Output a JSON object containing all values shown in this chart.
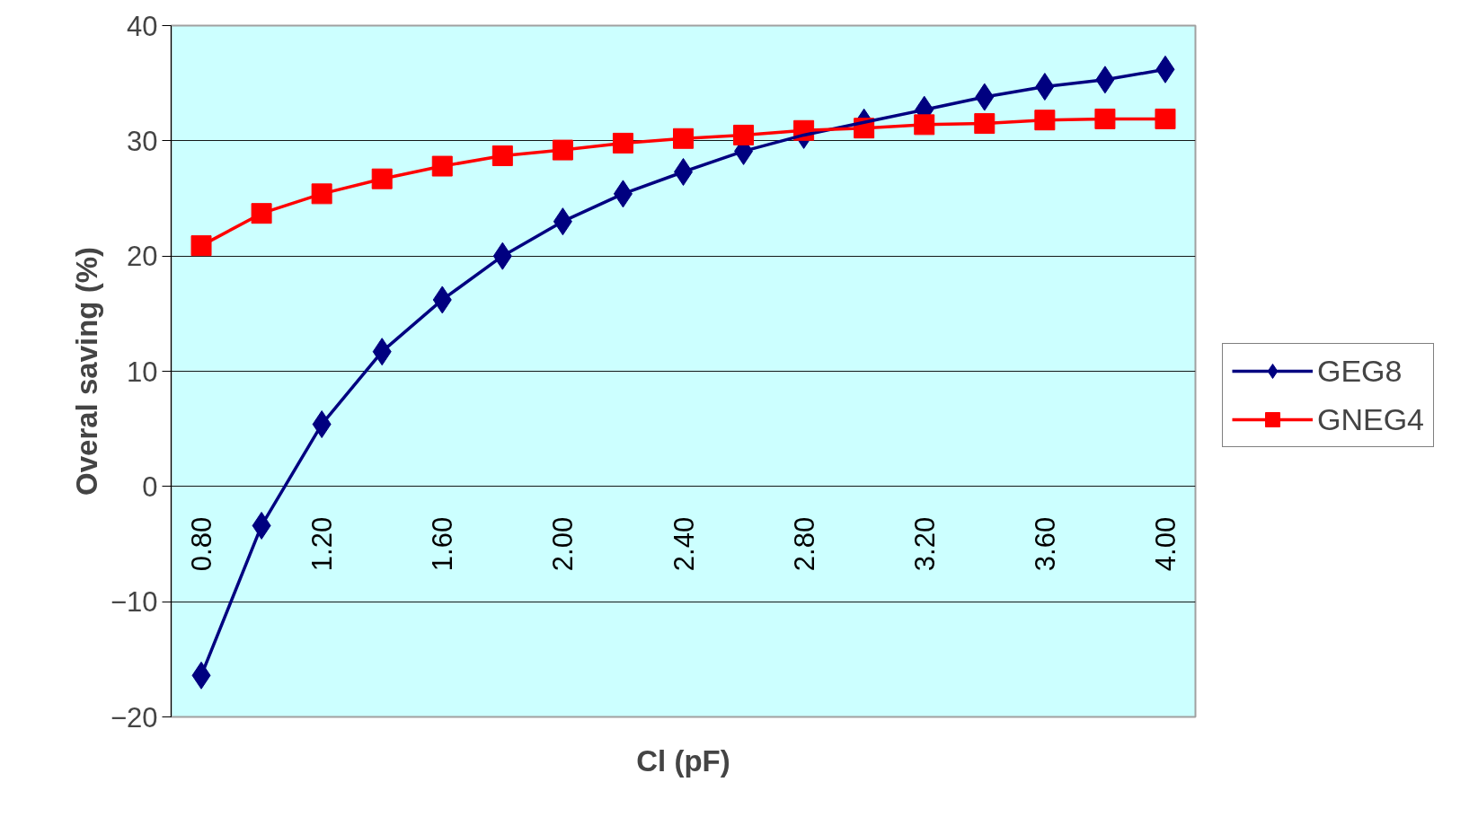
{
  "chart_data": {
    "type": "line",
    "xlabel": "Cl (pF)",
    "ylabel": "Overal saving (%)",
    "categories": [
      "0.80",
      null,
      "1.20",
      null,
      "1.60",
      null,
      "2.00",
      null,
      "2.40",
      null,
      "2.80",
      null,
      "3.20",
      null,
      "3.60",
      null,
      "4.00"
    ],
    "series": [
      {
        "name": "GEG8",
        "color": "#000080",
        "marker": "diamond",
        "values": [
          -16.4,
          -3.4,
          5.4,
          11.7,
          16.2,
          20.0,
          23.0,
          25.4,
          27.3,
          29.1,
          30.5,
          31.6,
          32.7,
          33.8,
          34.7,
          35.3,
          36.2
        ]
      },
      {
        "name": "GNEG4",
        "color": "#ff0000",
        "marker": "square",
        "values": [
          20.9,
          23.7,
          25.4,
          26.7,
          27.8,
          28.7,
          29.2,
          29.8,
          30.2,
          30.5,
          30.9,
          31.1,
          31.4,
          31.5,
          31.8,
          31.9,
          31.9
        ]
      }
    ],
    "ylim": [
      -20,
      40
    ],
    "yticks": [
      -20,
      -10,
      0,
      10,
      20,
      30,
      40
    ],
    "grid": "y",
    "legend": "right",
    "line_style": "solid"
  }
}
